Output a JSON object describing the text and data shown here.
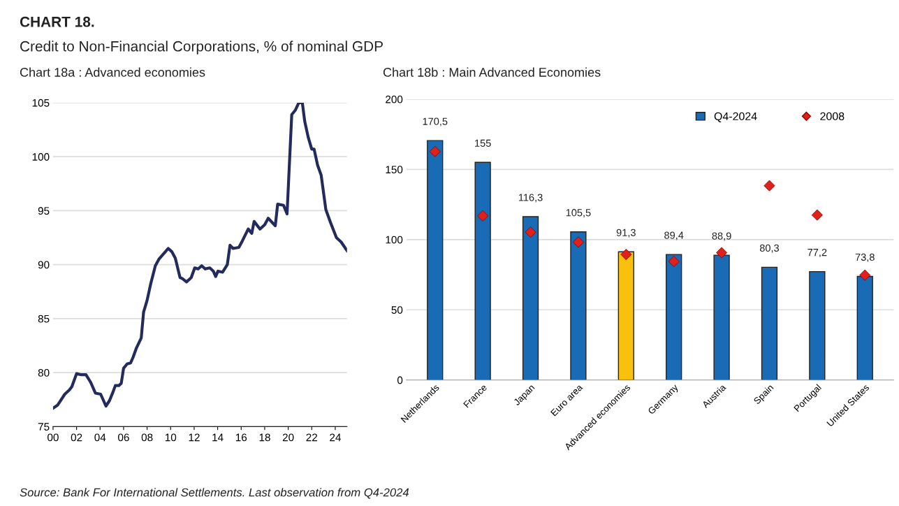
{
  "chart_data": [
    {
      "type": "line",
      "title": "Chart 18a : Advanced economies",
      "annotations": [
        "CHART 18.",
        "Credit to Non-Financial Corporations, % of nominal GDP",
        "Source: Bank For International Settlements. Last observation from Q4-2024"
      ],
      "x": [
        2000.0,
        2000.4,
        2001.0,
        2001.4,
        2001.6,
        2002.0,
        2002.4,
        2002.8,
        2003.2,
        2003.6,
        2004.05,
        2004.5,
        2004.8,
        2005.1,
        2005.3,
        2005.6,
        2005.8,
        2006.0,
        2006.3,
        2006.6,
        2006.8,
        2007.1,
        2007.5,
        2007.7,
        2008.0,
        2008.3,
        2008.7,
        2009.0,
        2009.4,
        2009.8,
        2010.1,
        2010.4,
        2010.8,
        2011.0,
        2011.35,
        2011.75,
        2012.05,
        2012.34,
        2012.64,
        2012.94,
        2013.33,
        2013.63,
        2013.83,
        2014.03,
        2014.42,
        2014.82,
        2015.05,
        2015.31,
        2015.8,
        2016.1,
        2016.6,
        2016.9,
        2017.1,
        2017.6,
        2018.0,
        2018.3,
        2018.9,
        2019.1,
        2019.6,
        2019.9,
        2020.3,
        2020.6,
        2020.9,
        2021.2,
        2021.4,
        2021.7,
        2022.0,
        2022.2,
        2022.5,
        2022.8,
        2023.2,
        2023.6,
        2024.1,
        2024.5,
        2025.0
      ],
      "series": [
        {
          "color": "#222b5c",
          "values": [
            76.7,
            77.0,
            78.0,
            78.4,
            78.7,
            79.9,
            79.8,
            79.8,
            79.1,
            78.1,
            78.0,
            76.9,
            77.4,
            78.2,
            78.8,
            78.8,
            79.0,
            80.4,
            80.8,
            80.9,
            81.4,
            82.3,
            83.2,
            85.6,
            86.7,
            88.2,
            89.9,
            90.5,
            91.0,
            91.5,
            91.2,
            90.6,
            88.8,
            88.7,
            88.4,
            88.8,
            89.7,
            89.6,
            89.9,
            89.6,
            89.7,
            89.4,
            88.9,
            89.4,
            89.3,
            90.0,
            91.8,
            91.5,
            91.6,
            92.2,
            93.3,
            92.9,
            94.0,
            93.3,
            93.7,
            94.3,
            93.6,
            95.6,
            95.5,
            94.7,
            103.9,
            104.3,
            105.0,
            105.0,
            103.3,
            101.8,
            100.7,
            100.7,
            99.2,
            98.3,
            95.1,
            93.9,
            92.5,
            92.1,
            91.3
          ]
        }
      ],
      "xlim": [
        2000,
        2025
      ],
      "xticks": [
        {
          "value": 2000,
          "label": "00"
        },
        {
          "value": 2002,
          "label": "02"
        },
        {
          "value": 2004,
          "label": "04"
        },
        {
          "value": 2006,
          "label": "06"
        },
        {
          "value": 2008,
          "label": "08"
        },
        {
          "value": 2010,
          "label": "10"
        },
        {
          "value": 2012,
          "label": "12"
        },
        {
          "value": 2014,
          "label": "14"
        },
        {
          "value": 2016,
          "label": "16"
        },
        {
          "value": 2018,
          "label": "18"
        },
        {
          "value": 2020,
          "label": "20"
        },
        {
          "value": 2022,
          "label": "22"
        },
        {
          "value": 2024,
          "label": "24"
        }
      ],
      "ylim": [
        75,
        105
      ],
      "yticks": [
        75,
        80,
        85,
        90,
        95,
        100,
        105
      ],
      "grid": "y",
      "marker": "none",
      "line_style": "solid"
    },
    {
      "type": "bar",
      "title": "Chart 18b : Main Advanced Economies",
      "categories": [
        "Netherlands",
        "France",
        "Japan",
        "Euro area",
        "Advanced economies",
        "Germany",
        "Austria",
        "Spain",
        "Portugal",
        "United States"
      ],
      "series": [
        {
          "name": "Q4-2024",
          "type": "bar",
          "color": "#1a6bb5",
          "colors": [
            "#1a6bb5",
            "#1a6bb5",
            "#1a6bb5",
            "#1a6bb5",
            "#f9c10e",
            "#1a6bb5",
            "#1a6bb5",
            "#1a6bb5",
            "#1a6bb5",
            "#1a6bb5"
          ],
          "values": [
            170.5,
            155,
            116.3,
            105.5,
            91.3,
            89.4,
            88.9,
            80.3,
            77.2,
            73.8
          ],
          "value_labels": [
            "170,5",
            "155",
            "116,3",
            "105,5",
            "91,3",
            "89,4",
            "88,9",
            "80,3",
            "77,2",
            "73,8"
          ]
        },
        {
          "name": "2008",
          "type": "scatter",
          "marker": "diamond",
          "color": "#e0201b",
          "values": [
            162.7,
            116.9,
            105.3,
            98.2,
            89.4,
            84.4,
            90.7,
            138.4,
            117.5,
            74.7
          ]
        }
      ],
      "ylim": [
        0,
        200
      ],
      "yticks": [
        0,
        50,
        100,
        150,
        200
      ],
      "grid": "y",
      "legend": "top right"
    }
  ]
}
